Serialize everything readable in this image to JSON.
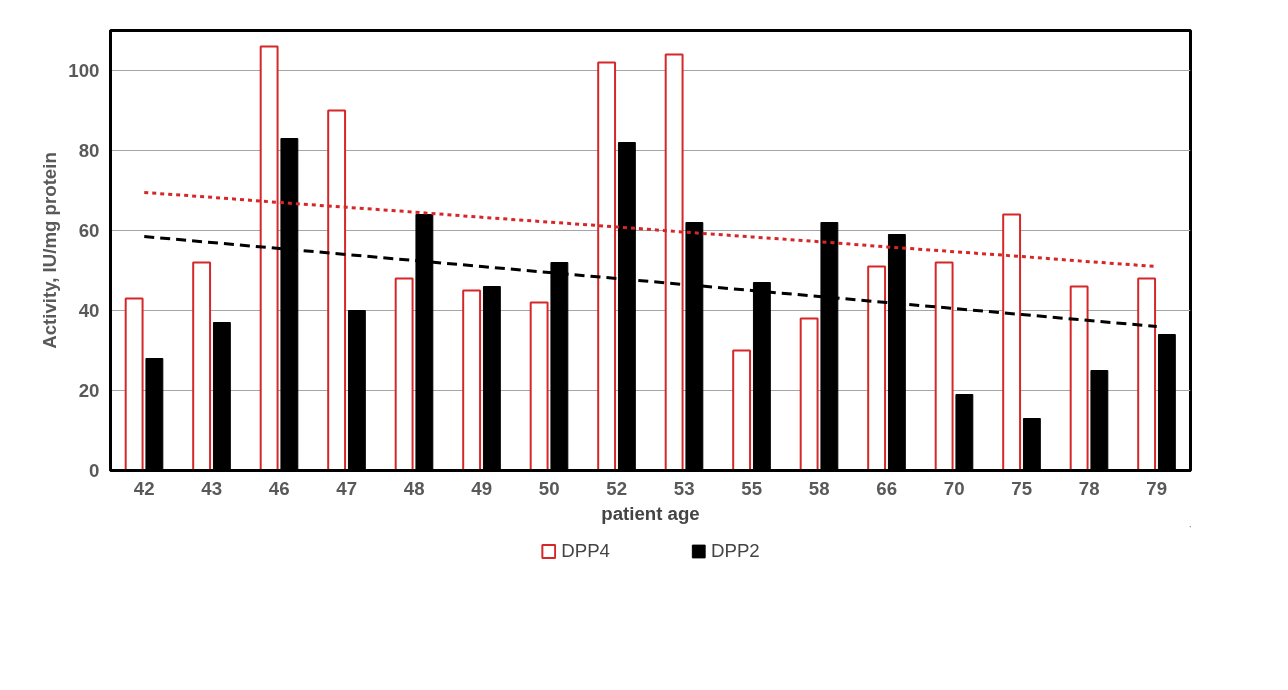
{
  "chart_data": {
    "type": "bar",
    "xlabel": "patient age",
    "ylabel": "Activity, IU/mg protein",
    "categories": [
      "42",
      "43",
      "46",
      "47",
      "48",
      "49",
      "50",
      "52",
      "53",
      "55",
      "58",
      "66",
      "70",
      "75",
      "78",
      "79"
    ],
    "series": [
      {
        "name": "DPP4",
        "color": "#d62728",
        "values": [
          43,
          52,
          106,
          90,
          48,
          45,
          42,
          102,
          104,
          30,
          38,
          51,
          52,
          64,
          46,
          48
        ]
      },
      {
        "name": "DPP2",
        "color": "#000000",
        "values": [
          28,
          37,
          83,
          40,
          64,
          46,
          52,
          82,
          62,
          47,
          62,
          59,
          19,
          13,
          25,
          34
        ]
      },
      {
        "type": "line",
        "color": "#d62728",
        "line_style": "dotted",
        "values": [
          69.5,
          68.3,
          67.0,
          65.8,
          64.6,
          63.3,
          62.1,
          60.9,
          59.6,
          58.4,
          57.2,
          55.9,
          54.7,
          53.5,
          52.2,
          51.0
        ]
      },
      {
        "type": "line",
        "color": "#000000",
        "line_style": "dashed",
        "values": [
          58.5,
          57.0,
          55.5,
          54.0,
          52.5,
          51.0,
          49.5,
          48.0,
          46.5,
          45.0,
          43.5,
          42.0,
          40.5,
          39.0,
          37.5,
          36.0
        ]
      }
    ],
    "ylim": [
      0,
      110
    ],
    "yticks": [
      0,
      20,
      40,
      60,
      80,
      100
    ],
    "grid": "y",
    "legend": "bottom",
    "marker": "none"
  }
}
